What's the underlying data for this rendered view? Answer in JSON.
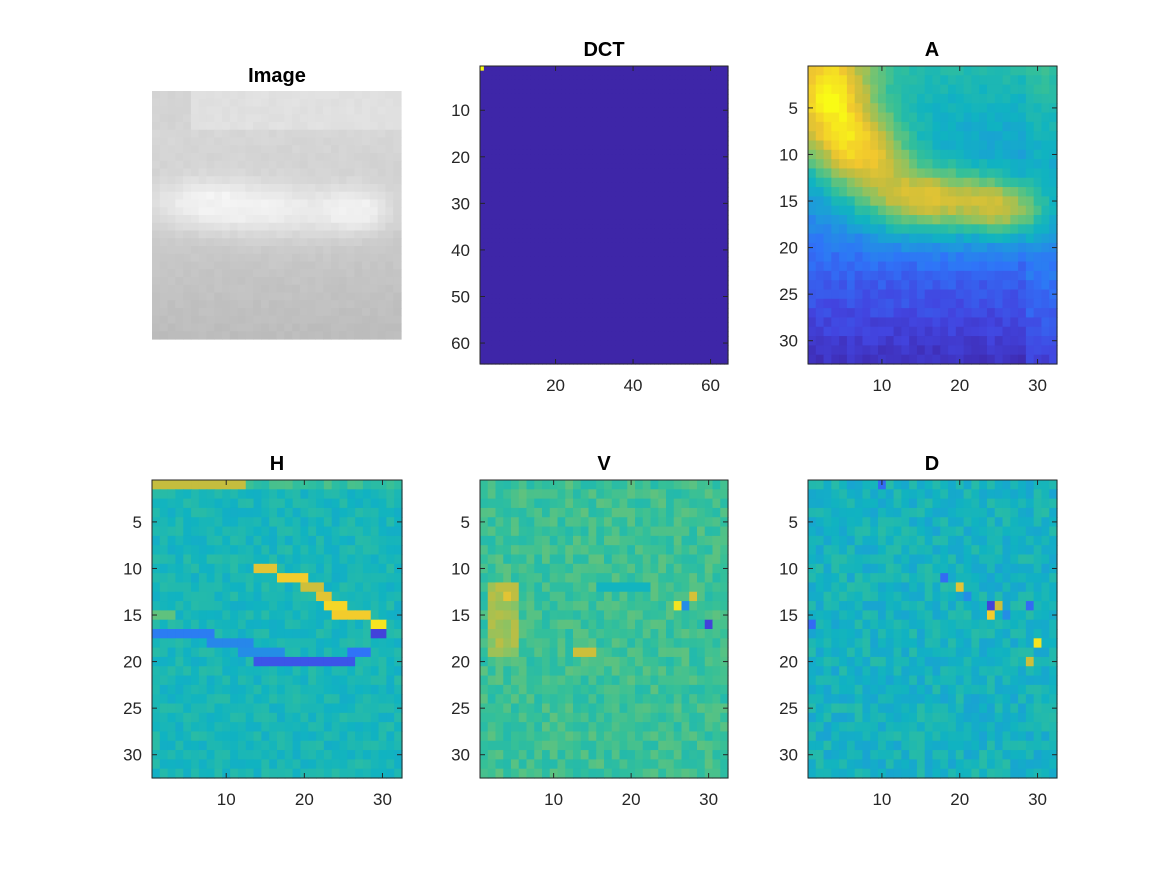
{
  "figure": {
    "background": "#ffffff",
    "colormap": "parula",
    "colormap_stops": [
      "#3e26a8",
      "#4245e0",
      "#2f74f8",
      "#1f98de",
      "#10b3c1",
      "#35c098",
      "#7dc46c",
      "#c4bd3e",
      "#f2c72e",
      "#f9fb15"
    ]
  },
  "chart_data": [
    {
      "type": "heatmap",
      "id": "image",
      "title": "Image",
      "colormap": "gray",
      "axes_visible": false,
      "description_values": {
        "sky": 0.78,
        "cloud": 0.93
      }
    },
    {
      "type": "heatmap",
      "id": "dct",
      "title": "DCT",
      "size": [
        64,
        64
      ],
      "ylim": [
        0.5,
        64.5
      ],
      "xlim": [
        0.5,
        64.5
      ],
      "xticks": [
        20,
        40,
        60
      ],
      "yticks": [
        10,
        20,
        30,
        40,
        50,
        60
      ],
      "note_values": {
        "dc_coefficient": 1.0,
        "others": 0.0
      }
    },
    {
      "type": "heatmap",
      "id": "A",
      "title": "A",
      "size": [
        32,
        32
      ],
      "xlim": [
        0.5,
        32.5
      ],
      "ylim": [
        0.5,
        32.5
      ],
      "xticks": [
        10,
        20,
        30
      ],
      "yticks": [
        5,
        10,
        15,
        20,
        25,
        30
      ]
    },
    {
      "type": "heatmap",
      "id": "H",
      "title": "H",
      "size": [
        32,
        32
      ],
      "xlim": [
        0.5,
        32.5
      ],
      "ylim": [
        0.5,
        32.5
      ],
      "xticks": [
        10,
        20,
        30
      ],
      "yticks": [
        5,
        10,
        15,
        20,
        25,
        30
      ]
    },
    {
      "type": "heatmap",
      "id": "V",
      "title": "V",
      "size": [
        32,
        32
      ],
      "xlim": [
        0.5,
        32.5
      ],
      "ylim": [
        0.5,
        32.5
      ],
      "xticks": [
        10,
        20,
        30
      ],
      "yticks": [
        5,
        10,
        15,
        20,
        25,
        30
      ]
    },
    {
      "type": "heatmap",
      "id": "D",
      "title": "D",
      "size": [
        32,
        32
      ],
      "xlim": [
        0.5,
        32.5
      ],
      "ylim": [
        0.5,
        32.5
      ],
      "xticks": [
        10,
        20,
        30
      ],
      "yticks": [
        5,
        10,
        15,
        20,
        25,
        30
      ]
    }
  ]
}
